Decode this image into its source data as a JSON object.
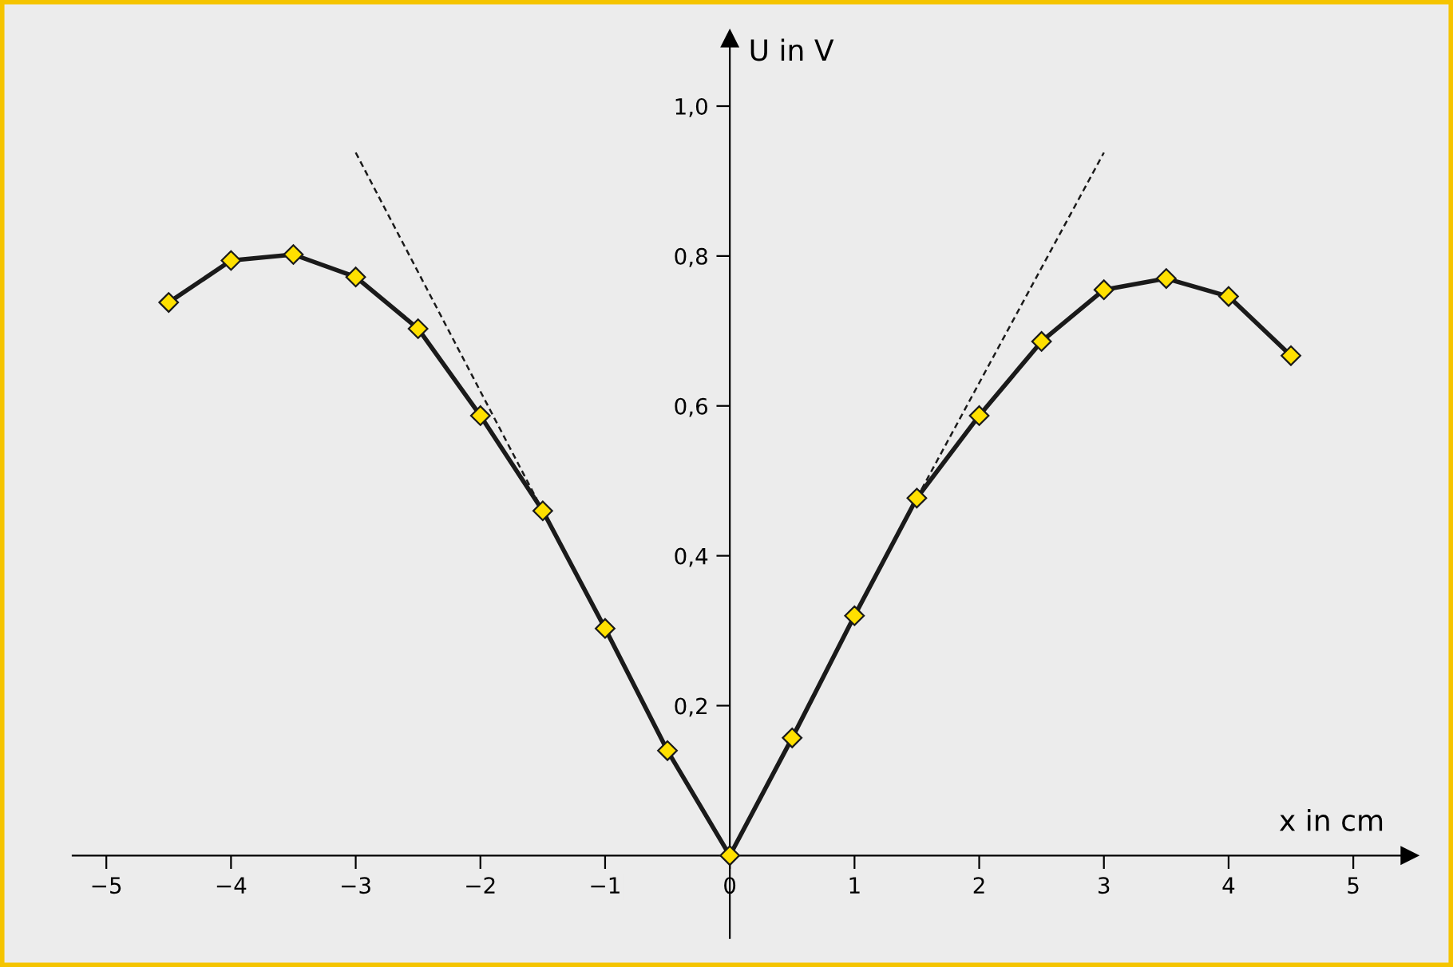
{
  "chart_data": {
    "type": "line",
    "xlabel": "x in cm",
    "ylabel": "U in V",
    "xlim": [
      -5.27,
      5.45
    ],
    "ylim": [
      -0.11,
      1.09
    ],
    "xticks": [
      {
        "value": -5,
        "label": "−5"
      },
      {
        "value": -4,
        "label": "−4"
      },
      {
        "value": -3,
        "label": "−3"
      },
      {
        "value": -2,
        "label": "−2"
      },
      {
        "value": -1,
        "label": "−1"
      },
      0,
      1,
      2,
      3,
      4,
      5
    ],
    "yticks": [
      {
        "value": 0.2,
        "label": "0,2"
      },
      {
        "value": 0.4,
        "label": "0,4"
      },
      {
        "value": 0.6,
        "label": "0,6"
      },
      {
        "value": 0.8,
        "label": "0,8"
      },
      {
        "value": 1.0,
        "label": "1,0"
      }
    ],
    "grid": false,
    "series": [
      {
        "color": "#1a1a1a",
        "marker": "diamond",
        "line_style": "solid",
        "x": [
          -4.5,
          -4,
          -3.5,
          -3,
          -2.5,
          -2,
          -1.5,
          -1,
          -0.5,
          0,
          0.5,
          1,
          1.5,
          2,
          2.5,
          3,
          3.5,
          4,
          4.5
        ],
        "values": [
          0.738,
          0.794,
          0.802,
          0.772,
          0.703,
          0.587,
          0.46,
          0.303,
          0.14,
          0,
          0.157,
          0.32,
          0.477,
          0.587,
          0.686,
          0.755,
          0.77,
          0.746,
          0.667
        ]
      },
      {
        "color": "#1a1a1a",
        "marker": "none",
        "line_style": "dashed",
        "x": [
          -3,
          -1.5
        ],
        "values": [
          0.938,
          0.46
        ]
      },
      {
        "color": "#1a1a1a",
        "marker": "none",
        "line_style": "dashed",
        "x": [
          1.5,
          3
        ],
        "values": [
          0.477,
          0.938
        ]
      }
    ]
  }
}
